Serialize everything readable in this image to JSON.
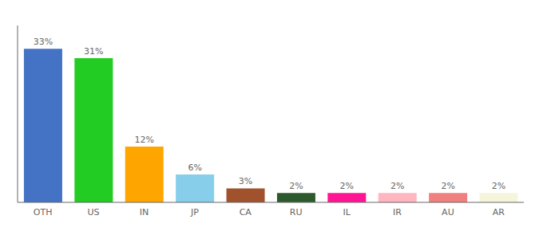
{
  "chart_data": {
    "type": "bar",
    "categories": [
      "OTH",
      "US",
      "IN",
      "JP",
      "CA",
      "RU",
      "IL",
      "IR",
      "AU",
      "AR"
    ],
    "values": [
      33,
      31,
      12,
      6,
      3,
      2,
      2,
      2,
      2,
      2
    ],
    "value_labels": [
      "33%",
      "31%",
      "12%",
      "6%",
      "3%",
      "2%",
      "2%",
      "2%",
      "2%",
      "2%"
    ],
    "colors": [
      "#4472C4",
      "#22CC22",
      "#FFA500",
      "#87CEEB",
      "#A0522D",
      "#2D5A2D",
      "#FF1493",
      "#FFB6C1",
      "#F08080",
      "#F5F5DC"
    ],
    "ylim": [
      0,
      38
    ],
    "data_labels": true,
    "tick_labels": "x",
    "grid": false
  }
}
